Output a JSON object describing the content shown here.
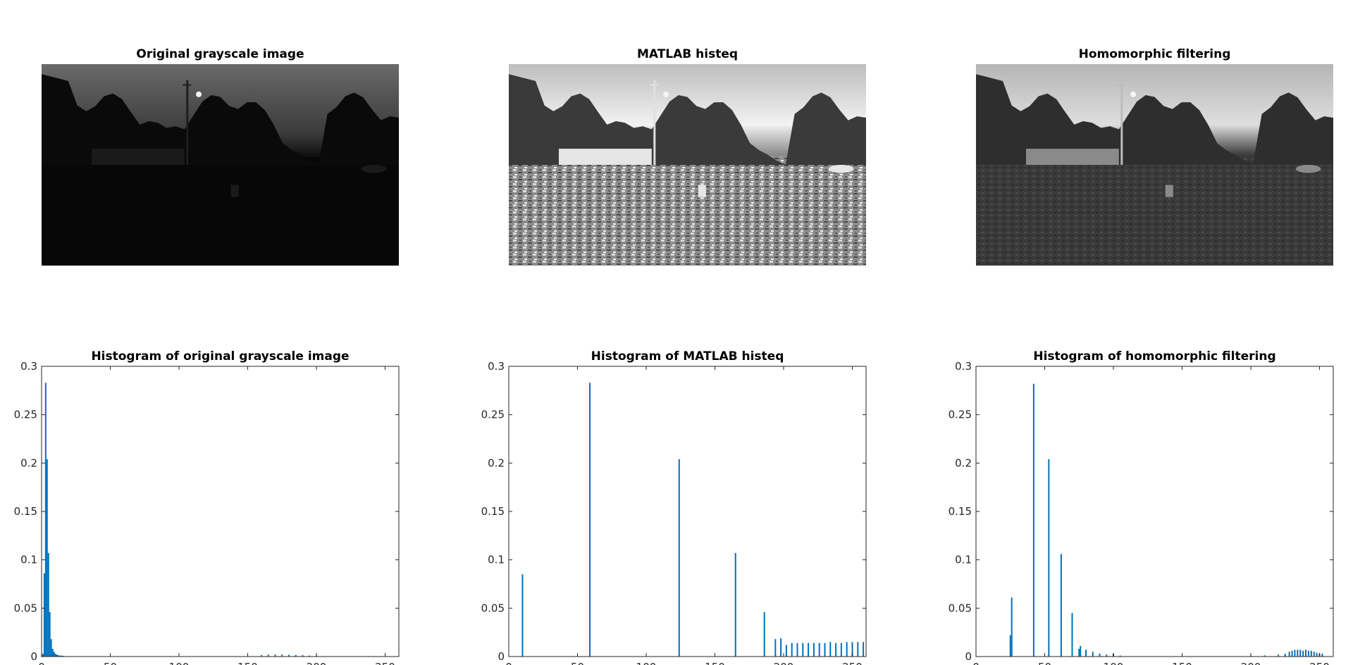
{
  "colors": {
    "bar": "#0072BD",
    "axis": "#262626",
    "background": "#ffffff"
  },
  "image_panels": [
    {
      "title": "Original grayscale image",
      "variant": "original"
    },
    {
      "title": "MATLAB histeq",
      "variant": "histeq"
    },
    {
      "title": "Homomorphic filtering",
      "variant": "homomorphic"
    }
  ],
  "chart_data": [
    {
      "type": "bar",
      "title": "Histogram of original grayscale image",
      "xlabel": "",
      "ylabel": "",
      "xlim": [
        0,
        260
      ],
      "ylim": [
        0,
        0.3
      ],
      "xticks": [
        0,
        50,
        100,
        150,
        200,
        250
      ],
      "yticks": [
        0,
        0.05,
        0.1,
        0.15,
        0.2,
        0.25,
        0.3
      ],
      "x": [
        0,
        1,
        2,
        3,
        4,
        5,
        6,
        7,
        8,
        9,
        10,
        11,
        12,
        13,
        14,
        15,
        16,
        18,
        20,
        160,
        165,
        170,
        175,
        180,
        185,
        190,
        195,
        200,
        210
      ],
      "values": [
        0.001,
        0.003,
        0.086,
        0.283,
        0.204,
        0.107,
        0.046,
        0.018,
        0.008,
        0.005,
        0.003,
        0.002,
        0.0015,
        0.001,
        0.001,
        0.0008,
        0.0006,
        0.0004,
        0.0003,
        0.0015,
        0.002,
        0.002,
        0.002,
        0.0018,
        0.0016,
        0.0014,
        0.001,
        0.0008,
        0.0004
      ]
    },
    {
      "type": "bar",
      "title": "Histogram of MATLAB histeq",
      "xlabel": "",
      "ylabel": "",
      "xlim": [
        0,
        260
      ],
      "ylim": [
        0,
        0.3
      ],
      "xticks": [
        0,
        50,
        100,
        150,
        200,
        250
      ],
      "yticks": [
        0,
        0.05,
        0.1,
        0.15,
        0.2,
        0.25,
        0.3
      ],
      "x": [
        10,
        59,
        124,
        165,
        186,
        194,
        198,
        202,
        206,
        210,
        214,
        218,
        222,
        226,
        230,
        234,
        238,
        242,
        246,
        250,
        254,
        258
      ],
      "values": [
        0.085,
        0.283,
        0.204,
        0.107,
        0.046,
        0.018,
        0.019,
        0.012,
        0.014,
        0.014,
        0.014,
        0.014,
        0.014,
        0.014,
        0.014,
        0.015,
        0.014,
        0.014,
        0.015,
        0.015,
        0.015,
        0.015
      ]
    },
    {
      "type": "bar",
      "title": "Histogram of homomorphic filtering",
      "xlabel": "",
      "ylabel": "",
      "xlim": [
        0,
        260
      ],
      "ylim": [
        0,
        0.3
      ],
      "xticks": [
        0,
        50,
        100,
        150,
        200,
        250
      ],
      "yticks": [
        0,
        0.05,
        0.1,
        0.15,
        0.2,
        0.25,
        0.3
      ],
      "x": [
        25,
        26,
        42,
        53,
        62,
        70,
        75,
        76,
        80,
        85,
        90,
        95,
        100,
        105,
        200,
        210,
        220,
        225,
        228,
        230,
        232,
        234,
        236,
        238,
        240,
        242,
        244,
        246,
        248,
        250,
        252
      ],
      "values": [
        0.022,
        0.061,
        0.282,
        0.204,
        0.106,
        0.045,
        0.008,
        0.011,
        0.007,
        0.005,
        0.003,
        0.002,
        0.003,
        0.001,
        0.0008,
        0.0012,
        0.002,
        0.003,
        0.005,
        0.006,
        0.007,
        0.007,
        0.007,
        0.006,
        0.007,
        0.006,
        0.006,
        0.005,
        0.004,
        0.003,
        0.003
      ]
    }
  ]
}
